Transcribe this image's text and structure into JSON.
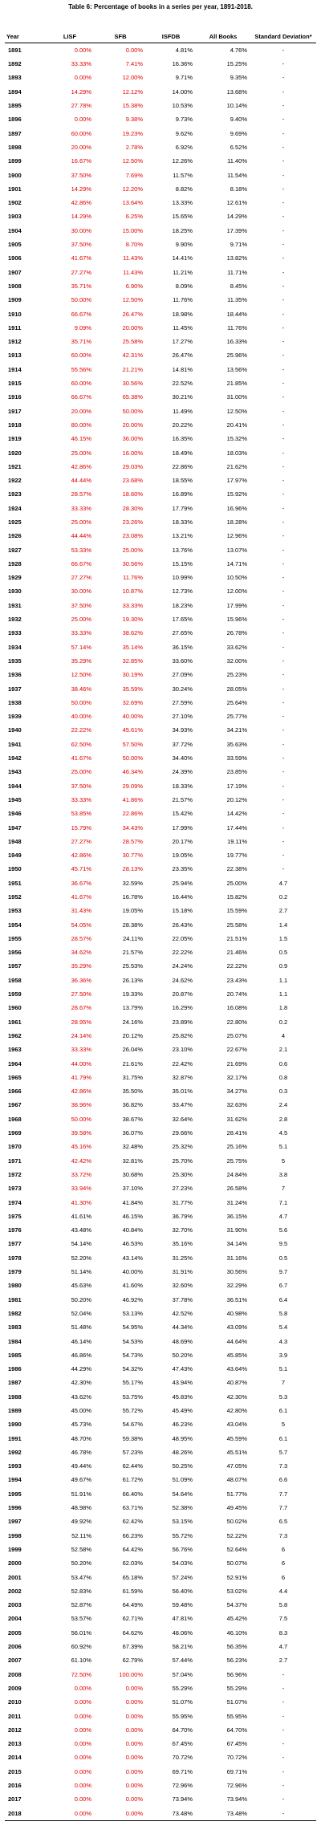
{
  "table": {
    "title": "Table 6: Percentage of books in a series per year, 1891-2018.",
    "columns": [
      "Year",
      "LISF",
      "SFB",
      "ISFDB",
      "All Books",
      "Standard Deviation*"
    ],
    "highlight_color": "#e00000",
    "highlighted_columns_per_row": [
      2,
      2,
      2,
      2,
      2,
      2,
      2,
      2,
      2,
      2,
      2,
      2,
      2,
      2,
      2,
      2,
      2,
      2,
      2,
      2,
      2,
      2,
      2,
      2,
      2,
      2,
      2,
      2,
      2,
      2,
      2,
      2,
      2,
      2,
      2,
      2,
      2,
      2,
      2,
      2,
      2,
      2,
      2,
      2,
      2,
      2,
      2,
      2,
      2,
      2,
      2,
      2,
      2,
      2,
      2,
      2,
      2,
      2,
      2,
      2,
      1,
      1,
      1,
      1,
      1,
      1,
      1,
      1,
      1,
      1,
      1,
      1,
      1,
      1,
      1,
      1,
      1,
      1,
      1,
      1,
      1,
      1,
      1,
      1,
      0,
      0,
      0,
      0,
      0,
      0,
      0,
      0,
      0,
      0,
      0,
      0,
      0,
      0,
      0,
      0,
      0,
      0,
      0,
      0,
      0,
      0,
      0,
      0,
      0,
      0,
      0,
      0,
      0,
      0,
      0,
      0,
      0,
      2,
      2,
      2,
      2,
      2,
      2,
      2,
      2,
      2,
      2,
      2
    ],
    "rows": [
      [
        "1891",
        "0.00%",
        "0.00%",
        "4.81%",
        "4.76%",
        "-"
      ],
      [
        "1892",
        "33.33%",
        "7.41%",
        "16.36%",
        "15.25%",
        "-"
      ],
      [
        "1893",
        "0.00%",
        "12.00%",
        "9.71%",
        "9.35%",
        "-"
      ],
      [
        "1894",
        "14.29%",
        "12.12%",
        "14.00%",
        "13.68%",
        "-"
      ],
      [
        "1895",
        "27.78%",
        "15.38%",
        "10.53%",
        "10.14%",
        "-"
      ],
      [
        "1896",
        "0.00%",
        "9.38%",
        "9.73%",
        "9.40%",
        "-"
      ],
      [
        "1897",
        "60.00%",
        "19.23%",
        "9.62%",
        "9.69%",
        "-"
      ],
      [
        "1898",
        "20.00%",
        "2.78%",
        "6.92%",
        "6.52%",
        "-"
      ],
      [
        "1899",
        "16.67%",
        "12.50%",
        "12.26%",
        "11.40%",
        "-"
      ],
      [
        "1900",
        "37.50%",
        "7.69%",
        "11.57%",
        "11.54%",
        "-"
      ],
      [
        "1901",
        "14.29%",
        "12.20%",
        "8.82%",
        "8.18%",
        "-"
      ],
      [
        "1902",
        "42.86%",
        "13.64%",
        "13.33%",
        "12.61%",
        "-"
      ],
      [
        "1903",
        "14.29%",
        "6.25%",
        "15.65%",
        "14.29%",
        "-"
      ],
      [
        "1904",
        "30.00%",
        "15.00%",
        "18.25%",
        "17.39%",
        "-"
      ],
      [
        "1905",
        "37.50%",
        "8.70%",
        "9.90%",
        "9.71%",
        "-"
      ],
      [
        "1906",
        "41.67%",
        "11.43%",
        "14.41%",
        "13.82%",
        "-"
      ],
      [
        "1907",
        "27.27%",
        "11.43%",
        "11.21%",
        "11.71%",
        "-"
      ],
      [
        "1908",
        "35.71%",
        "6.90%",
        "8.09%",
        "8.45%",
        "-"
      ],
      [
        "1909",
        "50.00%",
        "12.50%",
        "11.76%",
        "11.35%",
        "-"
      ],
      [
        "1910",
        "66.67%",
        "26.47%",
        "18.98%",
        "18.44%",
        "-"
      ],
      [
        "1911",
        "9.09%",
        "20.00%",
        "11.45%",
        "11.76%",
        "-"
      ],
      [
        "1912",
        "35.71%",
        "25.58%",
        "17.27%",
        "16.33%",
        "-"
      ],
      [
        "1913",
        "60.00%",
        "42.31%",
        "26.47%",
        "25.96%",
        "-"
      ],
      [
        "1914",
        "55.56%",
        "21.21%",
        "14.81%",
        "13.56%",
        "-"
      ],
      [
        "1915",
        "60.00%",
        "30.56%",
        "22.52%",
        "21.85%",
        "-"
      ],
      [
        "1916",
        "66.67%",
        "65.38%",
        "30.21%",
        "31.00%",
        "-"
      ],
      [
        "1917",
        "20.00%",
        "50.00%",
        "11.49%",
        "12.50%",
        "-"
      ],
      [
        "1918",
        "80.00%",
        "20.00%",
        "20.22%",
        "20.41%",
        "-"
      ],
      [
        "1919",
        "46.15%",
        "36.00%",
        "16.35%",
        "15.32%",
        "-"
      ],
      [
        "1920",
        "25.00%",
        "16.00%",
        "18.49%",
        "18.03%",
        "-"
      ],
      [
        "1921",
        "42.86%",
        "29.03%",
        "22.86%",
        "21.62%",
        "-"
      ],
      [
        "1922",
        "44.44%",
        "23.68%",
        "18.55%",
        "17.97%",
        "-"
      ],
      [
        "1923",
        "28.57%",
        "18.60%",
        "16.89%",
        "15.92%",
        "-"
      ],
      [
        "1924",
        "33.33%",
        "28.30%",
        "17.79%",
        "16.96%",
        "-"
      ],
      [
        "1925",
        "25.00%",
        "23.26%",
        "18.33%",
        "18.28%",
        "-"
      ],
      [
        "1926",
        "44.44%",
        "23.08%",
        "13.21%",
        "12.96%",
        "-"
      ],
      [
        "1927",
        "53.33%",
        "25.00%",
        "13.76%",
        "13.07%",
        "-"
      ],
      [
        "1928",
        "66.67%",
        "30.56%",
        "15.15%",
        "14.71%",
        "-"
      ],
      [
        "1929",
        "27.27%",
        "11.76%",
        "10.99%",
        "10.50%",
        "-"
      ],
      [
        "1930",
        "30.00%",
        "10.87%",
        "12.73%",
        "12.00%",
        "-"
      ],
      [
        "1931",
        "37.50%",
        "33.33%",
        "18.23%",
        "17.99%",
        "-"
      ],
      [
        "1932",
        "25.00%",
        "19.30%",
        "17.65%",
        "15.96%",
        "-"
      ],
      [
        "1933",
        "33.33%",
        "38.62%",
        "27.65%",
        "26.78%",
        "-"
      ],
      [
        "1934",
        "57.14%",
        "35.14%",
        "36.15%",
        "33.62%",
        "-"
      ],
      [
        "1935",
        "35.29%",
        "32.85%",
        "33.60%",
        "32.00%",
        "-"
      ],
      [
        "1936",
        "12.50%",
        "30.19%",
        "27.09%",
        "25.23%",
        "-"
      ],
      [
        "1937",
        "38.46%",
        "35.59%",
        "30.24%",
        "28.05%",
        "-"
      ],
      [
        "1938",
        "50.00%",
        "32.69%",
        "27.59%",
        "25.64%",
        "-"
      ],
      [
        "1939",
        "40.00%",
        "40.00%",
        "27.10%",
        "25.77%",
        "-"
      ],
      [
        "1940",
        "22.22%",
        "45.61%",
        "34.93%",
        "34.21%",
        "-"
      ],
      [
        "1941",
        "62.50%",
        "57.50%",
        "37.72%",
        "35.63%",
        "-"
      ],
      [
        "1942",
        "41.67%",
        "50.00%",
        "34.40%",
        "33.59%",
        "-"
      ],
      [
        "1943",
        "25.00%",
        "46.34%",
        "24.39%",
        "23.85%",
        "-"
      ],
      [
        "1944",
        "37.50%",
        "29.09%",
        "18.33%",
        "17.19%",
        "-"
      ],
      [
        "1945",
        "33.33%",
        "41.86%",
        "21.57%",
        "20.12%",
        "-"
      ],
      [
        "1946",
        "53.85%",
        "22.86%",
        "15.42%",
        "14.42%",
        "-"
      ],
      [
        "1947",
        "15.79%",
        "34.43%",
        "17.99%",
        "17.44%",
        "-"
      ],
      [
        "1948",
        "27.27%",
        "28.57%",
        "20.17%",
        "19.11%",
        "-"
      ],
      [
        "1949",
        "42.86%",
        "30.77%",
        "19.05%",
        "19.77%",
        "-"
      ],
      [
        "1950",
        "45.71%",
        "28.13%",
        "23.35%",
        "22.38%",
        "-"
      ],
      [
        "1951",
        "36.67%",
        "32.59%",
        "25.94%",
        "25.00%",
        "4.7"
      ],
      [
        "1952",
        "41.67%",
        "16.78%",
        "16.44%",
        "15.82%",
        "0.2"
      ],
      [
        "1953",
        "31.43%",
        "19.05%",
        "15.18%",
        "15.59%",
        "2.7"
      ],
      [
        "1954",
        "54.05%",
        "28.38%",
        "26.43%",
        "25.58%",
        "1.4"
      ],
      [
        "1955",
        "28.57%",
        "24.11%",
        "22.05%",
        "21.51%",
        "1.5"
      ],
      [
        "1956",
        "34.62%",
        "21.57%",
        "22.22%",
        "21.46%",
        "0.5"
      ],
      [
        "1957",
        "35.29%",
        "25.53%",
        "24.24%",
        "22.22%",
        "0.9"
      ],
      [
        "1958",
        "36.36%",
        "26.13%",
        "24.62%",
        "23.43%",
        "1.1"
      ],
      [
        "1959",
        "27.50%",
        "19.33%",
        "20.87%",
        "20.74%",
        "1.1"
      ],
      [
        "1960",
        "28.67%",
        "13.79%",
        "16.29%",
        "16.08%",
        "1.8"
      ],
      [
        "1961",
        "28.95%",
        "24.16%",
        "23.89%",
        "22.80%",
        "0.2"
      ],
      [
        "1962",
        "24.14%",
        "20.12%",
        "25.82%",
        "25.07%",
        "4"
      ],
      [
        "1963",
        "33.33%",
        "26.04%",
        "23.10%",
        "22.67%",
        "2.1"
      ],
      [
        "1964",
        "44.00%",
        "21.61%",
        "22.42%",
        "21.69%",
        "0.6"
      ],
      [
        "1965",
        "41.79%",
        "31.75%",
        "32.87%",
        "32.17%",
        "0.8"
      ],
      [
        "1966",
        "42.86%",
        "35.50%",
        "35.01%",
        "34.27%",
        "0.3"
      ],
      [
        "1967",
        "38.96%",
        "36.82%",
        "33.47%",
        "32.63%",
        "2.4"
      ],
      [
        "1968",
        "50.00%",
        "38.67%",
        "32.64%",
        "31.62%",
        "2.8"
      ],
      [
        "1969",
        "39.58%",
        "36.07%",
        "29.66%",
        "28.41%",
        "4.5"
      ],
      [
        "1970",
        "45.16%",
        "32.48%",
        "25.32%",
        "25.16%",
        "5.1"
      ],
      [
        "1971",
        "42.42%",
        "32.81%",
        "25.70%",
        "25.75%",
        "5"
      ],
      [
        "1972",
        "33.72%",
        "30.68%",
        "25.30%",
        "24.84%",
        "3.8"
      ],
      [
        "1973",
        "33.94%",
        "37.10%",
        "27.23%",
        "26.58%",
        "7"
      ],
      [
        "1974",
        "41.30%",
        "41.84%",
        "31.77%",
        "31.24%",
        "7.1"
      ],
      [
        "1975",
        "41.61%",
        "46.15%",
        "36.79%",
        "36.15%",
        "4.7"
      ],
      [
        "1976",
        "43.48%",
        "40.84%",
        "32.70%",
        "31.90%",
        "5.6"
      ],
      [
        "1977",
        "54.14%",
        "46.53%",
        "35.16%",
        "34.14%",
        "9.5"
      ],
      [
        "1978",
        "52.20%",
        "43.14%",
        "31.25%",
        "31.16%",
        "0.5"
      ],
      [
        "1979",
        "51.14%",
        "40.00%",
        "31.91%",
        "30.56%",
        "9.7"
      ],
      [
        "1980",
        "45.63%",
        "41.60%",
        "32.60%",
        "32.29%",
        "6.7"
      ],
      [
        "1981",
        "50.20%",
        "46.92%",
        "37.78%",
        "36.51%",
        "6.4"
      ],
      [
        "1982",
        "52.04%",
        "53.13%",
        "42.52%",
        "40.98%",
        "5.8"
      ],
      [
        "1983",
        "51.48%",
        "54.95%",
        "44.34%",
        "43.09%",
        "5.4"
      ],
      [
        "1984",
        "46.14%",
        "54.53%",
        "48.69%",
        "44.64%",
        "4.3"
      ],
      [
        "1985",
        "46.86%",
        "54.73%",
        "50.20%",
        "45.85%",
        "3.9"
      ],
      [
        "1986",
        "44.29%",
        "54.32%",
        "47.43%",
        "43.64%",
        "5.1"
      ],
      [
        "1987",
        "42.30%",
        "55.17%",
        "43.94%",
        "40.87%",
        "7"
      ],
      [
        "1988",
        "43.62%",
        "53.75%",
        "45.83%",
        "42.30%",
        "5.3"
      ],
      [
        "1989",
        "45.00%",
        "55.72%",
        "45.49%",
        "42.80%",
        "6.1"
      ],
      [
        "1990",
        "45.73%",
        "54.67%",
        "46.23%",
        "43.04%",
        "5"
      ],
      [
        "1991",
        "48.70%",
        "59.38%",
        "48.95%",
        "45.59%",
        "6.1"
      ],
      [
        "1992",
        "46.78%",
        "57.23%",
        "48.26%",
        "45.51%",
        "5.7"
      ],
      [
        "1993",
        "49.44%",
        "62.44%",
        "50.25%",
        "47.05%",
        "7.3"
      ],
      [
        "1994",
        "49.67%",
        "61.72%",
        "51.09%",
        "48.07%",
        "6.6"
      ],
      [
        "1995",
        "51.91%",
        "66.40%",
        "54.64%",
        "51.77%",
        "7.7"
      ],
      [
        "1996",
        "48.98%",
        "63.71%",
        "52.38%",
        "49.45%",
        "7.7"
      ],
      [
        "1997",
        "49.92%",
        "62.42%",
        "53.15%",
        "50.02%",
        "6.5"
      ],
      [
        "1998",
        "52.11%",
        "66.23%",
        "55.72%",
        "52.22%",
        "7.3"
      ],
      [
        "1999",
        "52.58%",
        "64.42%",
        "56.76%",
        "52.64%",
        "6"
      ],
      [
        "2000",
        "50.20%",
        "62.03%",
        "54.03%",
        "50.07%",
        "6"
      ],
      [
        "2001",
        "53.47%",
        "65.18%",
        "57.24%",
        "52.91%",
        "6"
      ],
      [
        "2002",
        "52.83%",
        "61.59%",
        "56.40%",
        "53.02%",
        "4.4"
      ],
      [
        "2003",
        "52.87%",
        "64.49%",
        "59.48%",
        "54.37%",
        "5.8"
      ],
      [
        "2004",
        "53.57%",
        "62.71%",
        "47.81%",
        "45.42%",
        "7.5"
      ],
      [
        "2005",
        "56.01%",
        "64.62%",
        "48.06%",
        "46.10%",
        "8.3"
      ],
      [
        "2006",
        "60.92%",
        "67.39%",
        "58.21%",
        "56.35%",
        "4.7"
      ],
      [
        "2007",
        "61.10%",
        "62.79%",
        "57.44%",
        "56.23%",
        "2.7"
      ],
      [
        "2008",
        "72.50%",
        "100.00%",
        "57.04%",
        "56.96%",
        "-"
      ],
      [
        "2009",
        "0.00%",
        "0.00%",
        "55.29%",
        "55.29%",
        "-"
      ],
      [
        "2010",
        "0.00%",
        "0.00%",
        "51.07%",
        "51.07%",
        "-"
      ],
      [
        "2011",
        "0.00%",
        "0.00%",
        "55.95%",
        "55.95%",
        "-"
      ],
      [
        "2012",
        "0.00%",
        "0.00%",
        "64.70%",
        "64.70%",
        "-"
      ],
      [
        "2013",
        "0.00%",
        "0.00%",
        "67.45%",
        "67.45%",
        "-"
      ],
      [
        "2014",
        "0.00%",
        "0.00%",
        "70.72%",
        "70.72%",
        "-"
      ],
      [
        "2015",
        "0.00%",
        "0.00%",
        "69.71%",
        "69.71%",
        "-"
      ],
      [
        "2016",
        "0.00%",
        "0.00%",
        "72.96%",
        "72.96%",
        "-"
      ],
      [
        "2017",
        "0.00%",
        "0.00%",
        "73.94%",
        "73.94%",
        "-"
      ],
      [
        "2018",
        "0.00%",
        "0.00%",
        "73.48%",
        "73.48%",
        "-"
      ]
    ]
  }
}
